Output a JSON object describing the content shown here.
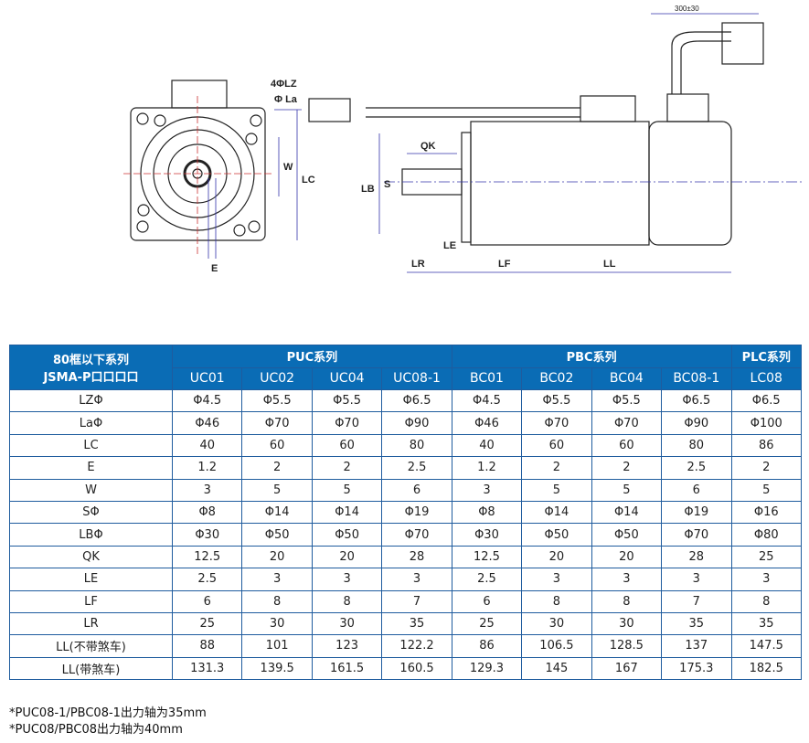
{
  "drawing": {
    "labels": {
      "lz": "4ΦLZ",
      "la": "Φ La",
      "w": "W",
      "lc": "LC",
      "e": "E",
      "qk": "QK",
      "s": "S",
      "lb": "LB",
      "le": "LE",
      "lr": "LR",
      "lf": "LF",
      "ll": "LL",
      "cable": "300±30"
    }
  },
  "table": {
    "corner": [
      "80框以下系列",
      "JSMA-P口口口口"
    ],
    "groups": [
      "PUC系列",
      "PBC系列",
      "PLC系列"
    ],
    "models": [
      "UC01",
      "UC02",
      "UC04",
      "UC08-1",
      "BC01",
      "BC02",
      "BC04",
      "BC08-1",
      "LC08"
    ],
    "rows": [
      {
        "label": "LZΦ",
        "values": [
          "Φ4.5",
          "Φ5.5",
          "Φ5.5",
          "Φ6.5",
          "Φ4.5",
          "Φ5.5",
          "Φ5.5",
          "Φ6.5",
          "Φ6.5"
        ]
      },
      {
        "label": "LaΦ",
        "values": [
          "Φ46",
          "Φ70",
          "Φ70",
          "Φ90",
          "Φ46",
          "Φ70",
          "Φ70",
          "Φ90",
          "Φ100"
        ]
      },
      {
        "label": "LC",
        "values": [
          "40",
          "60",
          "60",
          "80",
          "40",
          "60",
          "60",
          "80",
          "86"
        ]
      },
      {
        "label": "E",
        "values": [
          "1.2",
          "2",
          "2",
          "2.5",
          "1.2",
          "2",
          "2",
          "2.5",
          "2"
        ]
      },
      {
        "label": "W",
        "values": [
          "3",
          "5",
          "5",
          "6",
          "3",
          "5",
          "5",
          "6",
          "5"
        ]
      },
      {
        "label": "SΦ",
        "values": [
          "Φ8",
          "Φ14",
          "Φ14",
          "Φ19",
          "Φ8",
          "Φ14",
          "Φ14",
          "Φ19",
          "Φ16"
        ]
      },
      {
        "label": "LBΦ",
        "values": [
          "Φ30",
          "Φ50",
          "Φ50",
          "Φ70",
          "Φ30",
          "Φ50",
          "Φ50",
          "Φ70",
          "Φ80"
        ]
      },
      {
        "label": "QK",
        "values": [
          "12.5",
          "20",
          "20",
          "28",
          "12.5",
          "20",
          "20",
          "28",
          "25"
        ]
      },
      {
        "label": "LE",
        "values": [
          "2.5",
          "3",
          "3",
          "3",
          "2.5",
          "3",
          "3",
          "3",
          "3"
        ]
      },
      {
        "label": "LF",
        "values": [
          "6",
          "8",
          "8",
          "7",
          "6",
          "8",
          "8",
          "7",
          "8"
        ]
      },
      {
        "label": "LR",
        "values": [
          "25",
          "30",
          "30",
          "35",
          "25",
          "30",
          "30",
          "35",
          "35"
        ]
      },
      {
        "label": "LL(不带煞车)",
        "values": [
          "88",
          "101",
          "123",
          "122.2",
          "86",
          "106.5",
          "128.5",
          "137",
          "147.5"
        ]
      },
      {
        "label": "LL(带煞车)",
        "values": [
          "131.3",
          "139.5",
          "161.5",
          "160.5",
          "129.3",
          "145",
          "167",
          "175.3",
          "182.5"
        ]
      }
    ],
    "header_color": "#0a6cb5",
    "border_color": "#1f5c9e"
  },
  "notes": [
    "*PUC08-1/PBC08-1出力轴为35mm",
    "*PUC08/PBC08出力轴为40mm"
  ]
}
